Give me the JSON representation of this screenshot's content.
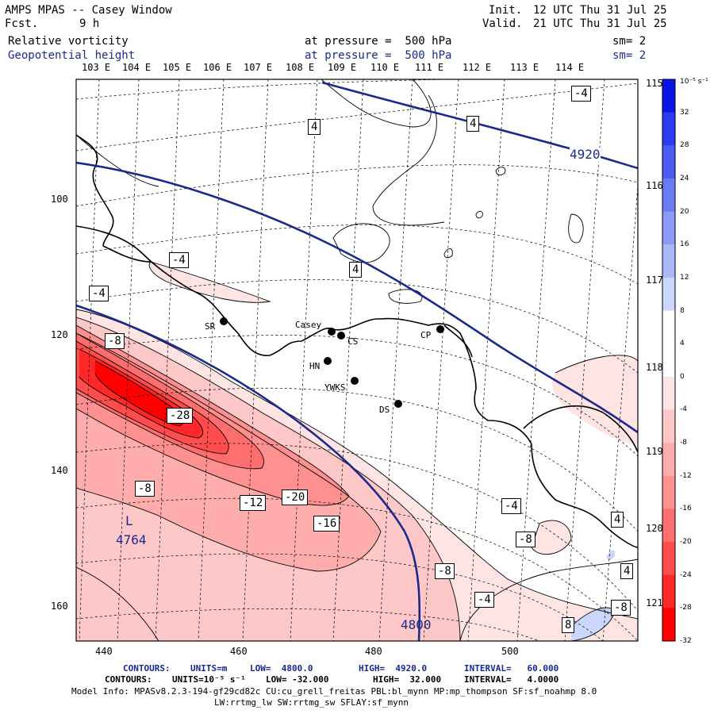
{
  "header": {
    "title": "AMPS MPAS -- Casey Window",
    "fcst_label": "Fcst.",
    "fcst_value": "9 h",
    "init_label": "Init.",
    "init_value": "12 UTC Thu 31 Jul 25",
    "valid_label": "Valid.",
    "valid_value": "21 UTC Thu 31 Jul 25",
    "field1": "Relative vorticity",
    "field2": "Geopotential height",
    "pressure1": "at pressure =  500 hPa",
    "pressure2": "at pressure =  500 hPa",
    "sm1": "sm= 2",
    "sm2": "sm= 2"
  },
  "axes": {
    "top_lon": [
      "103 E",
      "104 E",
      "105 E",
      "106 E",
      "107 E",
      "108 E",
      "109 E",
      "110 E",
      "111 E",
      "112 E",
      "113 E",
      "114 E"
    ],
    "right_lon": [
      "115 E",
      "116 E",
      "117 E",
      "118 E",
      "119 E",
      "120 E",
      "121 E"
    ],
    "left_y": [
      "100",
      "120",
      "140",
      "160"
    ],
    "bottom_x": [
      "440",
      "460",
      "480",
      "500"
    ]
  },
  "colorbar": {
    "unit": "10⁻⁵ s⁻¹",
    "ticks": [
      "32",
      "28",
      "24",
      "20",
      "16",
      "12",
      "8",
      "4",
      "0",
      "-4",
      "-8",
      "-12",
      "-16",
      "-20",
      "-24",
      "-28",
      "-32"
    ],
    "colors": [
      "#0a14e6",
      "#2a3cf0",
      "#4a5cf2",
      "#6a7cf4",
      "#8a9af6",
      "#aab8f8",
      "#cad6fb",
      "#ffffff",
      "#ffffff",
      "#ffe4e4",
      "#ffc8c8",
      "#ffacac",
      "#ff9090",
      "#ff6e6e",
      "#ff4c4c",
      "#ff2828",
      "#ff0000"
    ]
  },
  "stations": [
    {
      "name": "SR"
    },
    {
      "name": "Casey"
    },
    {
      "name": "CS"
    },
    {
      "name": "HN"
    },
    {
      "name": "YWKS"
    },
    {
      "name": "CP"
    },
    {
      "name": "DS"
    }
  ],
  "contour_labels": {
    "height": [
      "4920",
      "4800"
    ],
    "low_letter": "L",
    "low_value": "4764",
    "vorticity": [
      "-4",
      "4",
      "4",
      "-4",
      "4",
      "-4",
      "-8",
      "-28",
      "-8",
      "-12",
      "-20",
      "-16",
      "-4",
      "-8",
      "-8",
      "-4",
      "4",
      "4",
      "-8",
      "8"
    ]
  },
  "footer": {
    "line1_prefix": "CONTOURS:",
    "line1_units": "UNITS=m",
    "line1_low": "LOW=  4800.0",
    "line1_high": "HIGH=  4920.0",
    "line1_interval": "INTERVAL=   60.000",
    "line2_prefix": "CONTOURS:",
    "line2_units": "UNITS=10⁻⁵ s⁻¹",
    "line2_low": "LOW= -32.000",
    "line2_high": "HIGH=  32.000",
    "line2_interval": "INTERVAL=   4.0000",
    "model_info": "Model Info: MPASv8.2.3-194-gf29cd82c CU:cu_grell_freitas PBL:bl_mynn MP:mp_thompson SF:sf_noahmp 8.0",
    "model_info2": "LW:rrtmg_lw SW:rrtmg_sw SFLAY:sf_mynn"
  }
}
